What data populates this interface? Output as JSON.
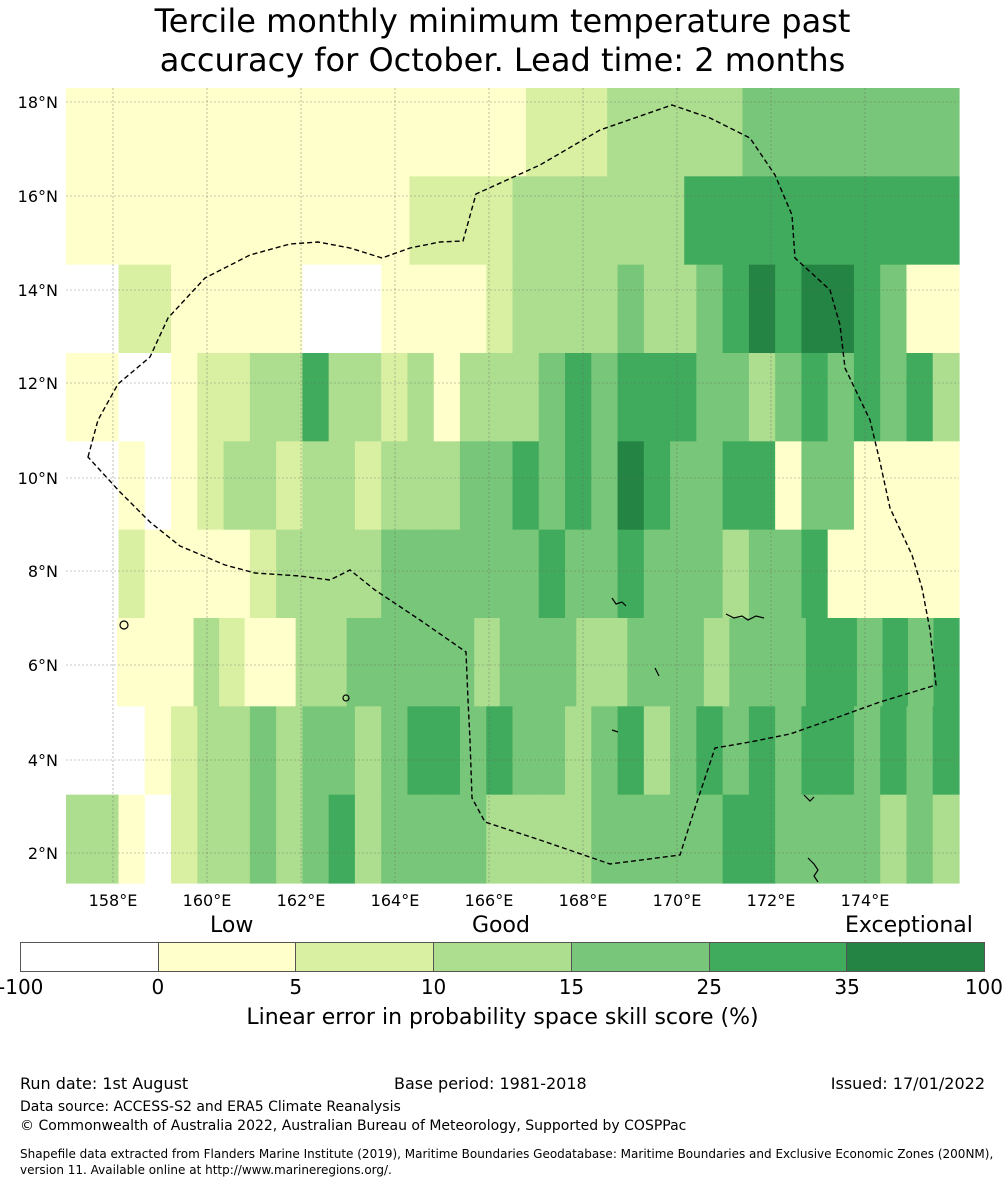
{
  "title_line1": "Tercile monthly minimum temperature past",
  "title_line2": "accuracy for October. Lead time: 2 months",
  "map": {
    "lat_labels": [
      "18°N",
      "16°N",
      "14°N",
      "12°N",
      "10°N",
      "8°N",
      "6°N",
      "4°N",
      "2°N"
    ],
    "lon_labels": [
      "158°E",
      "160°E",
      "162°E",
      "164°E",
      "166°E",
      "168°E",
      "170°E",
      "172°E",
      "174°E"
    ],
    "grid_rows": [
      "FFF111111CCCCCCCC2223333344444444",
      "11111111112223333355555555",
      "0022111110001111233334334565675411",
      "1100122335332313334545554434545453",
      "0010123323323334454546544551441111",
      "0021111233334444445445444344511111",
      "00111321133444443444334443444554545",
      "0001233434434554544345345454554545",
      "3310233434534444333344444554444343"
    ]
  },
  "colorbar": {
    "categories": [
      "Low",
      "Good",
      "Exceptional"
    ],
    "ticks": [
      "-100",
      "0",
      "5",
      "10",
      "15",
      "25",
      "35",
      "100"
    ],
    "colors": [
      "#ffffff",
      "#ffffcc",
      "#d9f0a3",
      "#addd8e",
      "#78c679",
      "#41ab5d",
      "#238443"
    ],
    "title": "Linear error in probability space skill score (%)"
  },
  "footer": {
    "run_date": "Run date: 1st August",
    "base_period": "Base period: 1981-2018",
    "issued": "Issued: 17/01/2022",
    "data_source": "Data source: ACCESS-S2 and ERA5 Climate Reanalysis",
    "copyright": "© Commonwealth of Australia 2022, Australian Bureau of Meteorology, Supported by COSPPac",
    "shapefile_line1": "Shapefile data extracted from Flanders Marine Institute (2019), Maritime Boundaries Geodatabase: Maritime Boundaries and Exclusive Economic Zones (200NM),",
    "shapefile_line2": "version 11. Available online at http://www.marineregions.org/."
  }
}
